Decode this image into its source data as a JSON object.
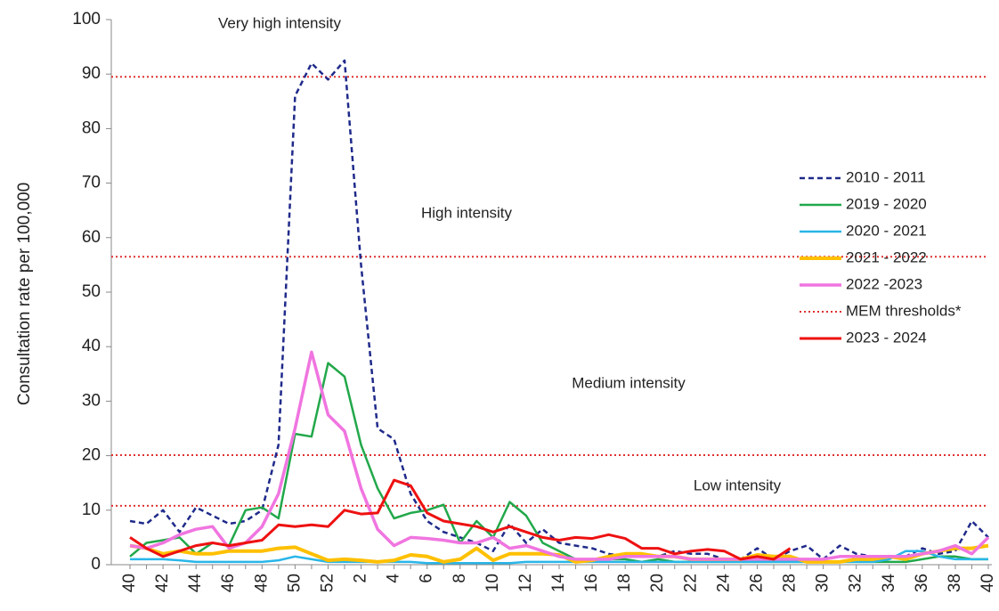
{
  "chart_data": {
    "type": "line",
    "y_label": "Consultation rate per 100,000",
    "annotations": [
      "Very high intensity",
      "High intensity",
      "Medium intensity",
      "Low intensity"
    ],
    "categories": [
      "40",
      null,
      "42",
      null,
      "44",
      null,
      "46",
      null,
      "48",
      null,
      "50",
      null,
      "52",
      null,
      "2",
      null,
      "4",
      null,
      "6",
      null,
      "8",
      null,
      "10",
      null,
      "12",
      null,
      "14",
      null,
      "16",
      null,
      "18",
      null,
      "20",
      null,
      "22",
      null,
      "24",
      null,
      "26",
      null,
      "28",
      null,
      "30",
      null,
      "32",
      null,
      "34",
      null,
      "36",
      null,
      "38",
      null,
      "40"
    ],
    "ylim": [
      0,
      100
    ],
    "yticks": [
      0,
      10,
      20,
      30,
      40,
      50,
      60,
      70,
      80,
      90,
      100
    ],
    "series": [
      {
        "name": "2010 - 2011",
        "color": "#1f2a8a",
        "dashed": true,
        "values": [
          8,
          7.5,
          10,
          6,
          10.5,
          9,
          7.5,
          8,
          10,
          22,
          86,
          92,
          89,
          92.5,
          55,
          25,
          23,
          13,
          8,
          6,
          5,
          4,
          2.5,
          7.5,
          4,
          6.5,
          4,
          3.5,
          3,
          2,
          1.5,
          2,
          1.5,
          2.5,
          2,
          2,
          1,
          1,
          3,
          1,
          2.5,
          3.5,
          1,
          3.5,
          2,
          1.5,
          1.5,
          1.5,
          3,
          2,
          2.5,
          8,
          5
        ]
      },
      {
        "name": "2019 - 2020",
        "color": "#22a84a",
        "dashed": false,
        "values": [
          1.5,
          4,
          4.5,
          5,
          2,
          4,
          3.5,
          10,
          10.5,
          8.5,
          24,
          23.5,
          37,
          34.5,
          22,
          14,
          8.5,
          9.5,
          10,
          11,
          4,
          8,
          5,
          11.5,
          9,
          4,
          2.5,
          1,
          1,
          1,
          1,
          0.5,
          1,
          0.5,
          0.5,
          0.5,
          0.5,
          0.5,
          0.5,
          0.5,
          0.5,
          0.5,
          0.5,
          0.5,
          0.5,
          0.5,
          0.5,
          0.5,
          1,
          1.5,
          1.5,
          1,
          1
        ]
      },
      {
        "name": "2020 - 2021",
        "color": "#29b6e8",
        "dashed": false,
        "values": [
          1,
          1,
          1,
          0.8,
          0.5,
          0.5,
          0.5,
          0.5,
          0.5,
          0.8,
          1.5,
          1,
          0.5,
          0.5,
          0.5,
          0.5,
          0.5,
          0.5,
          0.3,
          0.3,
          0.3,
          0.3,
          0.3,
          0.3,
          0.5,
          0.5,
          0.5,
          0.5,
          0.5,
          0.5,
          0.5,
          0.5,
          0.5,
          0.5,
          0.5,
          0.5,
          0.5,
          0.5,
          0.5,
          0.5,
          0.5,
          0.5,
          0.5,
          0.5,
          0.5,
          0.5,
          1,
          2.5,
          2.5,
          1.5,
          1,
          1,
          1
        ]
      },
      {
        "name": "2021 - 2022",
        "color": "#ffc000",
        "dashed": false,
        "values": [
          3.5,
          3,
          2,
          2.5,
          2,
          2,
          2.5,
          2.5,
          2.5,
          3,
          3.2,
          2,
          0.8,
          1,
          0.8,
          0.5,
          0.8,
          1.8,
          1.5,
          0.5,
          1,
          3,
          0.8,
          2,
          2,
          2,
          1.8,
          0.5,
          0.8,
          1.5,
          2,
          2,
          1.5,
          1.5,
          1,
          1,
          1,
          1,
          1.8,
          1.5,
          1.5,
          0.5,
          0.5,
          0.5,
          1,
          1,
          1.5,
          1,
          2,
          2.5,
          3,
          3,
          3.5
        ]
      },
      {
        "name": "2022 -2023",
        "color": "#f075e0",
        "dashed": false,
        "values": [
          3.5,
          3,
          4,
          5.5,
          6.5,
          7,
          3,
          4,
          7,
          13,
          25,
          39,
          27.5,
          24.5,
          14,
          6.5,
          3.5,
          5,
          4.8,
          4.5,
          4,
          4,
          5,
          3,
          3.5,
          2.5,
          1.5,
          1,
          1,
          1,
          1.5,
          1.5,
          1.5,
          1.5,
          1,
          1,
          1,
          1,
          1,
          1,
          1,
          1,
          1,
          1.5,
          1.5,
          1.5,
          1.5,
          1.5,
          2,
          2.5,
          3.5,
          2,
          5
        ]
      },
      {
        "name": "2023 - 2024",
        "color": "#ee1111",
        "dashed": false,
        "values": [
          5,
          3,
          1.5,
          2.5,
          3.5,
          4,
          3.5,
          4,
          4.5,
          7.3,
          7,
          7.3,
          7,
          10,
          9.3,
          9.5,
          15.5,
          14.5,
          9.5,
          8,
          7.5,
          7,
          6,
          7,
          6,
          5,
          4.5,
          5,
          4.8,
          5.5,
          4.8,
          3,
          3,
          2,
          2.5,
          2.8,
          2.5,
          1,
          1.5,
          1,
          3,
          null,
          null,
          null,
          null,
          null,
          null,
          null,
          null,
          null,
          null,
          null,
          null
        ]
      }
    ],
    "thresholds": {
      "name": "MEM thresholds*",
      "color": "#e03030",
      "values": [
        10.8,
        20.1,
        56.5,
        89.5
      ]
    }
  }
}
